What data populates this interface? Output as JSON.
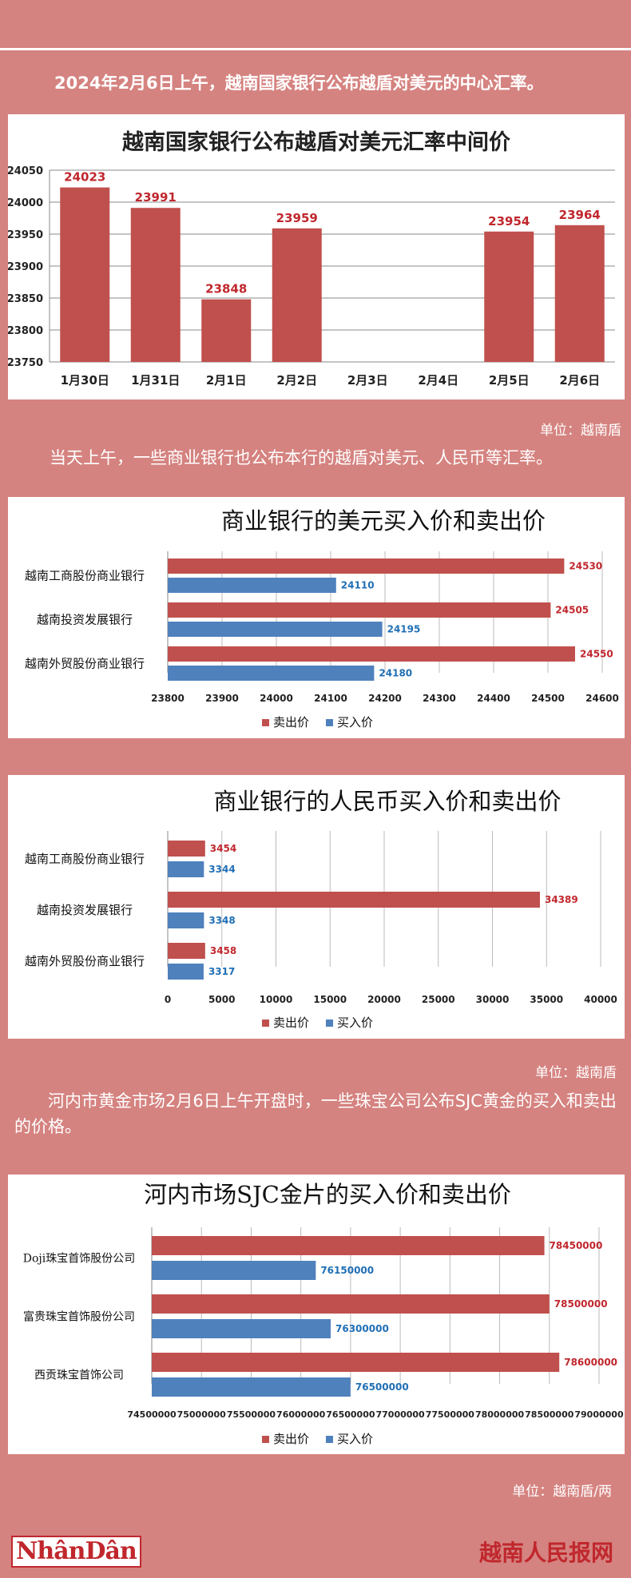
{
  "intro1": "2024年2月6日上午，越南国家银行公布越盾对美元的中心汇率。",
  "unit1": "单位：越南盾",
  "intro2": "当天上午，一些商业银行也公布本行的越盾对美元、人民币等汇率。",
  "unit2": "单位：越南盾",
  "intro3": "河内市黄金市场2月6日上午开盘时，一些珠宝公司公布SJC黄金的买入和卖出的价格。",
  "unit3": "单位：越南盾/两",
  "logo": "NhânDân",
  "brand": "越南人民报网",
  "colors": {
    "sell": "#c0504d",
    "buy": "#4f81bd",
    "bg": "#d58380"
  },
  "chart_data": [
    {
      "type": "bar",
      "title": "越南国家银行公布越盾对美元汇率中间价",
      "categories": [
        "1月30日",
        "1月31日",
        "2月1日",
        "2月2日",
        "2月3日",
        "2月4日",
        "2月5日",
        "2月6日"
      ],
      "values": [
        24023,
        23991,
        23848,
        23959,
        null,
        null,
        23954,
        23964
      ],
      "ylim": [
        23750,
        24050
      ],
      "yticks": [
        23750,
        23800,
        23850,
        23900,
        23950,
        24000,
        24050
      ],
      "grid": true
    },
    {
      "type": "bar",
      "orientation": "horizontal",
      "title": "商业银行的美元买入价和卖出价",
      "categories": [
        "越南工商股份商业银行",
        "越南投资发展银行",
        "越南外贸股份商业银行"
      ],
      "series": [
        {
          "name": "卖出价",
          "values": [
            24530,
            24505,
            24550
          ]
        },
        {
          "name": "买入价",
          "values": [
            24110,
            24195,
            24180
          ]
        }
      ],
      "xlim": [
        23800,
        24600
      ],
      "xticks": [
        23800,
        23900,
        24000,
        24100,
        24200,
        24300,
        24400,
        24500,
        24600
      ],
      "legend": "bottom",
      "grid": true
    },
    {
      "type": "bar",
      "orientation": "horizontal",
      "title": "商业银行的人民币买入价和卖出价",
      "categories": [
        "越南工商股份商业银行",
        "越南投资发展银行",
        "越南外贸股份商业银行"
      ],
      "series": [
        {
          "name": "卖出价",
          "values": [
            3454,
            34389,
            3458
          ]
        },
        {
          "name": "买入价",
          "values": [
            3344,
            3348,
            3317
          ]
        }
      ],
      "xlim": [
        0,
        40000
      ],
      "xticks": [
        0,
        5000,
        10000,
        15000,
        20000,
        25000,
        30000,
        35000,
        40000
      ],
      "legend": "bottom",
      "grid": true
    },
    {
      "type": "bar",
      "orientation": "horizontal",
      "title": "河内市场SJC金片的买入价和卖出价",
      "categories": [
        "Doji珠宝首饰股份公司",
        "富贵珠宝首饰股份公司",
        "西贡珠宝首饰公司"
      ],
      "series": [
        {
          "name": "卖出价",
          "values": [
            78450000,
            78500000,
            78600000
          ]
        },
        {
          "name": "买入价",
          "values": [
            76150000,
            76300000,
            76500000
          ]
        }
      ],
      "xlim": [
        74500000,
        79000000
      ],
      "xticks": [
        74500000,
        75000000,
        75500000,
        76000000,
        76500000,
        77000000,
        77500000,
        78000000,
        78500000,
        79000000
      ],
      "legend": "bottom",
      "grid": true
    }
  ]
}
